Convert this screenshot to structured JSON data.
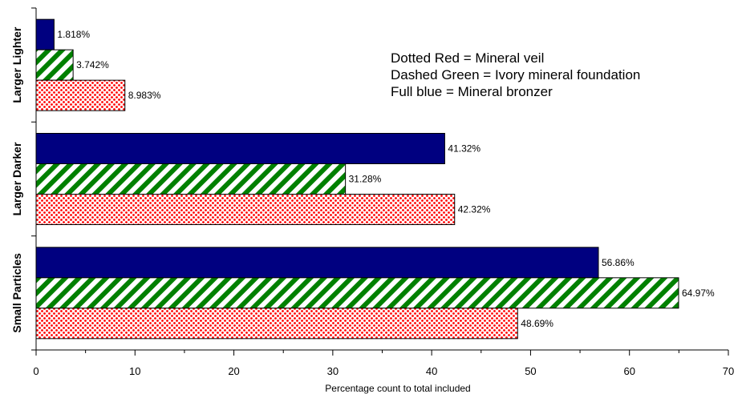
{
  "chart_data": {
    "type": "bar",
    "orientation": "horizontal",
    "categories": [
      "Small Particles",
      "Larger Darker",
      "Larger Lighter"
    ],
    "series": [
      {
        "values": [
          56.86,
          41.32,
          1.818
        ],
        "labels": [
          "56.86%",
          "41.32%",
          "1.818%"
        ],
        "color": "#000080",
        "pattern": "solid"
      },
      {
        "values": [
          64.97,
          31.28,
          3.742
        ],
        "labels": [
          "64.97%",
          "31.28%",
          "3.742%"
        ],
        "color": "#008000",
        "pattern": "diagonal-stripes"
      },
      {
        "values": [
          48.69,
          42.32,
          8.983
        ],
        "labels": [
          "48.69%",
          "42.32%",
          "8.983%"
        ],
        "color": "#ff0000",
        "pattern": "dots"
      }
    ],
    "xlabel": "Percentage count to total included",
    "ylabel": "",
    "xlim": [
      0,
      70
    ],
    "xticks": [
      "0",
      "10",
      "20",
      "30",
      "40",
      "50",
      "60",
      "70"
    ],
    "grid": false,
    "legend_text": [
      "Dotted Red = Mineral veil",
      "Dashed Green = Ivory mineral foundation",
      "Full blue = Mineral bronzer"
    ],
    "legend_placement": "top-right"
  }
}
